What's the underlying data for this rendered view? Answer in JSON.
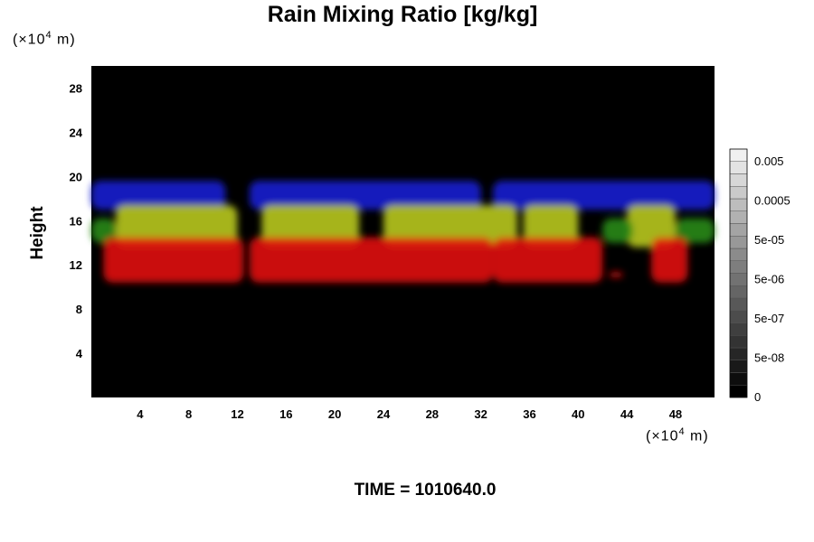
{
  "title": "Rain Mixing Ratio [kg/kg]",
  "y_unit": {
    "prefix": "(×10",
    "exp": "4",
    "suffix": " m)"
  },
  "x_unit": {
    "prefix": "(×10",
    "exp": "4",
    "suffix": " m)"
  },
  "ylabel": "Height",
  "time_label": "TIME = 1010640.0",
  "chart_data": {
    "type": "heatmap",
    "title": "Rain Mixing Ratio [kg/kg]",
    "xlabel": "",
    "ylabel": "Height",
    "xlim": [
      0,
      51.2
    ],
    "ylim": [
      0,
      30
    ],
    "x_ticks": [
      4,
      8,
      12,
      16,
      20,
      24,
      28,
      32,
      36,
      40,
      44,
      48
    ],
    "y_ticks": [
      4,
      8,
      12,
      16,
      20,
      24,
      28
    ],
    "background": "#000000",
    "colorbar": {
      "labels": [
        "0.005",
        "0.0005",
        "5e-05",
        "5e-06",
        "5e-07",
        "5e-08",
        "0"
      ],
      "steps": 20,
      "colors": [
        "#000000",
        "#ffffff"
      ]
    },
    "bands": [
      {
        "name": "",
        "color": "#1a1fd0",
        "y_bottom": 17.0,
        "y_top": 19.6,
        "x_ranges": [
          [
            0,
            11
          ],
          [
            13,
            32
          ],
          [
            33,
            51.2
          ]
        ]
      },
      {
        "name": "",
        "color": "#b8c81e",
        "y_bottom": 13.6,
        "y_top": 17.4,
        "x_ranges": [
          [
            2,
            12
          ],
          [
            14,
            22
          ],
          [
            24,
            35
          ],
          [
            35.5,
            40
          ],
          [
            44,
            48
          ]
        ]
      },
      {
        "name": "",
        "color": "#2a8a1a",
        "y_bottom": 14.0,
        "y_top": 16.2,
        "x_ranges": [
          [
            0,
            2
          ],
          [
            42,
            44.5
          ],
          [
            48,
            51.2
          ]
        ]
      },
      {
        "name": "",
        "color": "#e01010",
        "y_bottom": 10.4,
        "y_top": 14.5,
        "x_ranges": [
          [
            1,
            12.5
          ],
          [
            13,
            33
          ],
          [
            33,
            42
          ],
          [
            46,
            49
          ]
        ]
      },
      {
        "name": "",
        "color": "#c01010",
        "y_bottom": 10.8,
        "y_top": 11.4,
        "x_ranges": [
          [
            42.5,
            43.7
          ]
        ]
      }
    ]
  }
}
